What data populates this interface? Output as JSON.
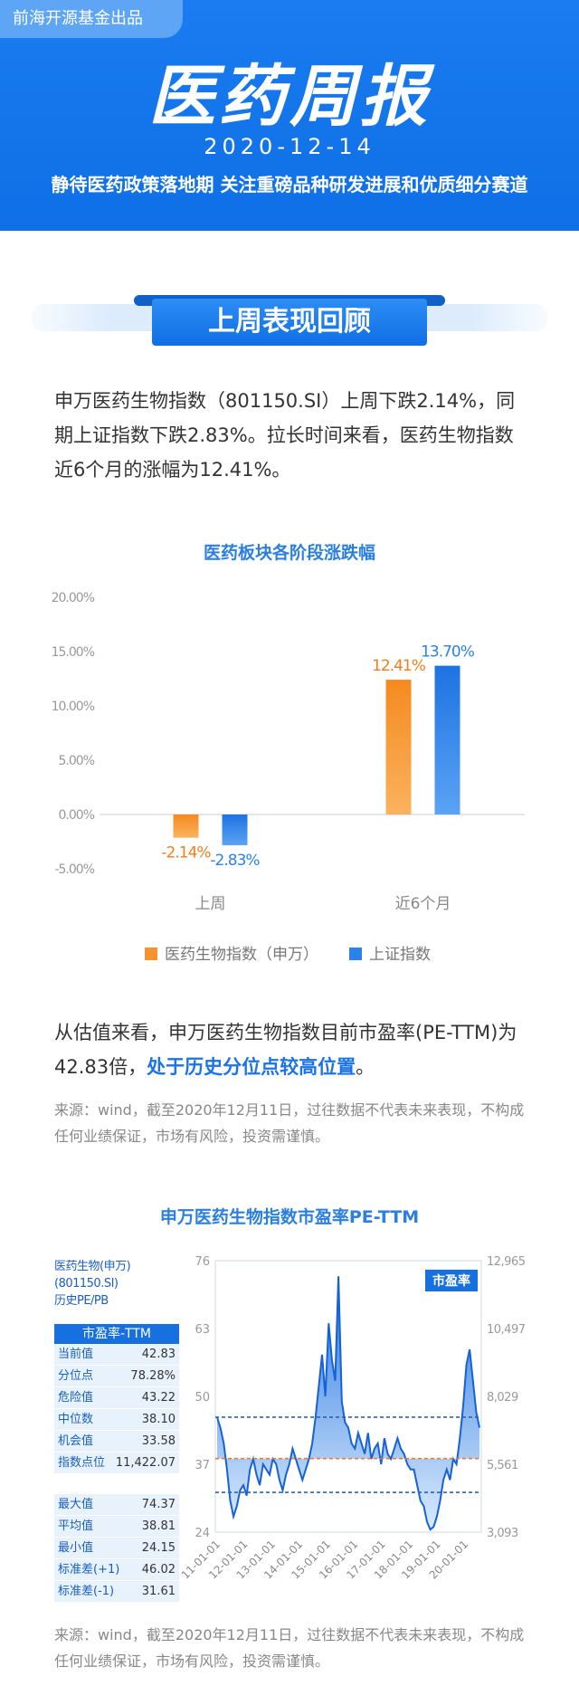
{
  "header": {
    "publisher": "前海开源基金出品",
    "title": "医药周报",
    "date": "2020-12-14",
    "subtitle": "静待医药政策落地期 关注重磅品种研发进展和优质细分赛道"
  },
  "section1": {
    "title": "上周表现回顾"
  },
  "paragraph1": "申万医药生物指数（801150.SI）上周下跌2.14%，同期上证指数下跌2.83%。拉长时间来看，医药生物指数近6个月的涨幅为12.41%。",
  "colors": {
    "orange": "#f7922e",
    "blue": "#2b82ea",
    "header": "#1a7cf0",
    "highlight": "#1a73e8"
  },
  "chart1": {
    "title": "医药板块各阶段涨跌幅",
    "chart_data": {
      "type": "bar",
      "categories": [
        "上周",
        "近6个月"
      ],
      "series": [
        {
          "name": "医药生物指数（申万）",
          "values": [
            -2.14,
            12.41
          ],
          "labels": [
            "-2.14%",
            "12.41%"
          ],
          "color": "#f7922e"
        },
        {
          "name": "上证指数",
          "values": [
            -2.83,
            13.7
          ],
          "labels": [
            "-2.83%",
            "13.70%"
          ],
          "color": "#2b82ea"
        }
      ],
      "yticks": [
        "20.00%",
        "15.00%",
        "10.00%",
        "5.00%",
        "0.00%",
        "-5.00%"
      ],
      "ylim": [
        -5,
        20
      ],
      "legend": "bottom"
    }
  },
  "paragraph2": {
    "text": "从估值来看，申万医药生物指数目前市盈率(PE-TTM)为42.83倍，",
    "highlight": "处于历史分位点较高位置",
    "end": "。"
  },
  "source1": "来源：wind，截至2020年12月11日，过往数据不代表未来表现，不构成任何业绩保证，市场有风险，投资需谨慎。",
  "chart2": {
    "title": "申万医药生物指数市盈率PE-TTM",
    "table": {
      "heading_line1": "医药生物(申万) (801150.SI)",
      "heading_line2": "历史PE/PB",
      "header": "市盈率-TTM",
      "rows1": [
        {
          "k": "当前值",
          "v": "42.83"
        },
        {
          "k": "分位点",
          "v": "78.28%"
        },
        {
          "k": "危险值",
          "v": "43.22"
        },
        {
          "k": "中位数",
          "v": "38.10"
        },
        {
          "k": "机会值",
          "v": "33.58"
        },
        {
          "k": "指数点位",
          "v": "11,422.07"
        }
      ],
      "rows2": [
        {
          "k": "最大值",
          "v": "74.37"
        },
        {
          "k": "平均值",
          "v": "38.81"
        },
        {
          "k": "最小值",
          "v": "24.15"
        },
        {
          "k": "标准差(+1)",
          "v": "46.02"
        },
        {
          "k": "标准差(-1)",
          "v": "31.61"
        }
      ]
    },
    "chart_data": {
      "type": "area",
      "badge": "市盈率",
      "left_ticks": [
        "76",
        "63",
        "50",
        "37",
        "24"
      ],
      "right_ticks": [
        "12,965",
        "10,497",
        "8,029",
        "5,561",
        "3,093"
      ],
      "ylim": [
        24,
        76
      ],
      "x_ticks": [
        "11-01-01",
        "12-01-01",
        "13-01-01",
        "14-01-01",
        "15-01-01",
        "16-01-01",
        "17-01-01",
        "18-01-01",
        "19-01-01",
        "20-01-01"
      ],
      "ref_lines": {
        "std_plus": 46.02,
        "median": 38.1,
        "std_minus": 31.61
      },
      "pe_series": [
        46,
        44,
        41,
        36,
        30,
        27,
        29,
        32,
        33,
        31,
        36,
        38,
        35,
        33,
        37,
        36,
        35,
        38,
        37,
        34,
        32,
        35,
        37,
        40,
        38,
        36,
        34,
        36,
        38,
        41,
        46,
        52,
        58,
        50,
        64,
        57,
        53,
        73,
        49,
        45,
        44,
        41,
        40,
        43,
        41,
        39,
        43,
        38,
        40,
        41,
        37,
        42,
        39,
        38,
        40,
        42,
        40,
        39,
        37,
        36,
        36,
        33,
        30,
        29,
        26,
        24.5,
        25,
        27,
        30,
        34,
        36,
        34,
        38,
        37,
        42,
        48,
        56,
        59,
        53,
        47,
        44
      ]
    }
  },
  "source2": "来源：wind，截至2020年12月11日，过往数据不代表未来表现，不构成任何业绩保证，市场有风险，投资需谨慎。"
}
